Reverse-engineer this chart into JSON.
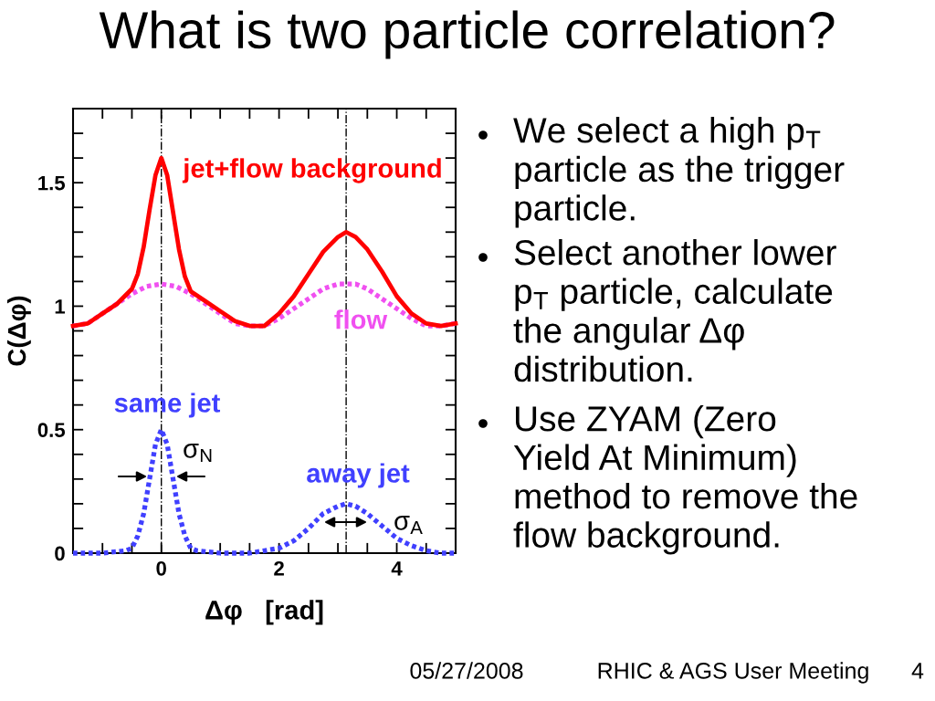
{
  "chart_data": {
    "type": "line",
    "title": "What is two particle correlation?",
    "xlabel": "Δφ   [rad]",
    "ylabel": "C(Δφ)",
    "xlim": [
      -1.5,
      5
    ],
    "ylim": [
      0,
      1.8
    ],
    "xticks": [
      {
        "value": -1,
        "label": null
      },
      {
        "value": -0.5,
        "label": null
      },
      0,
      {
        "value": 0.5,
        "label": null
      },
      {
        "value": 1,
        "label": null
      },
      {
        "value": 1.5,
        "label": null
      },
      2,
      {
        "value": 2.5,
        "label": null
      },
      {
        "value": 3,
        "label": null
      },
      {
        "value": 3.5,
        "label": null
      },
      4,
      {
        "value": 4.5,
        "label": null
      }
    ],
    "yticks": [
      0,
      {
        "value": 0.1,
        "label": null
      },
      {
        "value": 0.2,
        "label": null
      },
      {
        "value": 0.3,
        "label": null
      },
      {
        "value": 0.4,
        "label": null
      },
      0.5,
      {
        "value": 0.6,
        "label": null
      },
      {
        "value": 0.7,
        "label": null
      },
      {
        "value": 0.8,
        "label": null
      },
      {
        "value": 0.9,
        "label": null
      },
      1,
      {
        "value": 1.1,
        "label": null
      },
      {
        "value": 1.2,
        "label": null
      },
      {
        "value": 1.3,
        "label": null
      },
      {
        "value": 1.4,
        "label": null
      },
      1.5,
      {
        "value": 1.6,
        "label": null
      },
      {
        "value": 1.7,
        "label": null
      }
    ],
    "series": [
      {
        "name": "jet+flow background",
        "color": "#ff0000",
        "line_style": "solid",
        "x": [
          -1.5,
          -1.25,
          -1,
          -0.75,
          -0.5,
          -0.4,
          -0.3,
          -0.2,
          -0.1,
          0,
          0.1,
          0.2,
          0.3,
          0.4,
          0.5,
          0.75,
          1,
          1.25,
          1.5,
          1.75,
          2,
          2.25,
          2.5,
          2.75,
          3,
          3.14,
          3.3,
          3.5,
          3.75,
          4,
          4.25,
          4.5,
          4.75,
          5
        ],
        "values": [
          0.92,
          0.93,
          0.97,
          1.01,
          1.07,
          1.13,
          1.24,
          1.39,
          1.53,
          1.6,
          1.53,
          1.38,
          1.23,
          1.12,
          1.06,
          1.02,
          0.98,
          0.94,
          0.92,
          0.92,
          0.97,
          1.04,
          1.13,
          1.22,
          1.28,
          1.3,
          1.28,
          1.23,
          1.14,
          1.04,
          0.97,
          0.93,
          0.92,
          0.93
        ]
      },
      {
        "name": "flow",
        "color": "#f050f0",
        "line_style": "dotted",
        "x": [
          -1.5,
          -1.25,
          -1,
          -0.75,
          -0.5,
          -0.25,
          0,
          0.25,
          0.5,
          0.75,
          1,
          1.25,
          1.5,
          1.75,
          2,
          2.25,
          2.5,
          2.75,
          3,
          3.14,
          3.3,
          3.5,
          3.75,
          4,
          4.25,
          4.5,
          4.75,
          5
        ],
        "values": [
          0.92,
          0.93,
          0.97,
          1.01,
          1.05,
          1.08,
          1.09,
          1.08,
          1.05,
          1.01,
          0.97,
          0.93,
          0.92,
          0.92,
          0.95,
          0.99,
          1.03,
          1.07,
          1.09,
          1.09,
          1.09,
          1.07,
          1.03,
          0.99,
          0.95,
          0.92,
          0.92,
          0.93
        ]
      },
      {
        "color": "#4040ff",
        "line_style": "dotted",
        "x": [
          -1.5,
          -1,
          -0.6,
          -0.5,
          -0.4,
          -0.3,
          -0.2,
          -0.1,
          0,
          0.1,
          0.2,
          0.3,
          0.4,
          0.5,
          0.6,
          1,
          1.5,
          1.75,
          2,
          2.25,
          2.5,
          2.75,
          3,
          3.14,
          3.3,
          3.5,
          3.75,
          4,
          4.25,
          4.5,
          4.75,
          5
        ],
        "values": [
          0,
          0,
          0.01,
          0.02,
          0.07,
          0.16,
          0.3,
          0.44,
          0.5,
          0.44,
          0.3,
          0.16,
          0.07,
          0.02,
          0.01,
          0,
          0,
          0.01,
          0.02,
          0.05,
          0.1,
          0.16,
          0.19,
          0.2,
          0.19,
          0.16,
          0.11,
          0.06,
          0.03,
          0.01,
          0,
          0
        ]
      }
    ],
    "ref_lines": [
      {
        "axis": "x",
        "value": 0,
        "color": "#000000",
        "line_style": "dashdot"
      },
      {
        "axis": "x",
        "value": 3.14,
        "color": "#000000",
        "line_style": "dashdot"
      }
    ],
    "annotations": [
      "same jet",
      "σ$_{N}$",
      "away jet",
      "σ$_{A}$",
      "We select a high p$_{T}$\nparticle as the trigger\nparticle.",
      "Select another lower\np$_{T}$ particle, calculate\nthe angular Δφ\ndistribution.",
      "Use ZYAM (Zero\nYield At Minimum)\nmethod to remove the\nflow background.",
      "05/27/2008",
      "RHIC & AGS User Meeting",
      "4"
    ]
  }
}
